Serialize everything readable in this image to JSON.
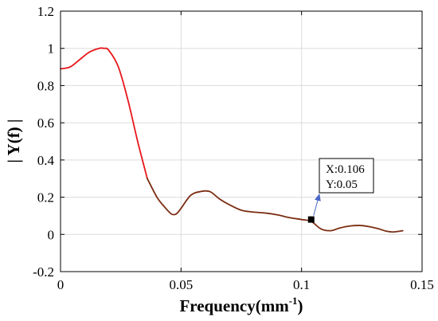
{
  "chart_data": {
    "type": "line",
    "title": "",
    "xlabel": "Frequency(mm",
    "xlabel_sup": "-1",
    "xlabel_close": ")",
    "ylabel": "| Y(f) |",
    "xlim": [
      0,
      0.15
    ],
    "ylim": [
      -0.2,
      1.2
    ],
    "xticks": [
      0,
      0.05,
      0.1,
      0.15
    ],
    "xtick_labels": [
      "0",
      "0.05",
      "0.1",
      "0.15"
    ],
    "yticks": [
      -0.2,
      0,
      0.2,
      0.4,
      0.6,
      0.8,
      1,
      1.2
    ],
    "ytick_labels": [
      "-0.2",
      "0",
      "0.2",
      "0.4",
      "0.6",
      "0.8",
      "1",
      "1.2"
    ],
    "grid": true,
    "legend": "none",
    "series": [
      {
        "color_segments": [
          {
            "until_x": 0.033,
            "color": "#e8161b"
          },
          {
            "until_x": 0.142,
            "color": "#7b2d12"
          }
        ],
        "x": [
          0,
          0.004,
          0.008,
          0.012,
          0.016,
          0.018,
          0.02,
          0.024,
          0.028,
          0.032,
          0.036,
          0.04,
          0.043,
          0.046,
          0.048,
          0.05,
          0.054,
          0.058,
          0.062,
          0.066,
          0.07,
          0.075,
          0.08,
          0.085,
          0.09,
          0.095,
          0.1,
          0.104,
          0.108,
          0.112,
          0.116,
          0.12,
          0.124,
          0.128,
          0.132,
          0.135,
          0.138,
          0.142
        ],
        "y": [
          0.89,
          0.9,
          0.94,
          0.98,
          1.0,
          1.0,
          0.99,
          0.9,
          0.72,
          0.5,
          0.3,
          0.2,
          0.15,
          0.11,
          0.11,
          0.14,
          0.21,
          0.23,
          0.23,
          0.19,
          0.16,
          0.13,
          0.12,
          0.115,
          0.105,
          0.09,
          0.08,
          0.07,
          0.03,
          0.02,
          0.035,
          0.045,
          0.048,
          0.042,
          0.03,
          0.018,
          0.013,
          0.02
        ]
      }
    ],
    "datatip": {
      "x": 0.104,
      "y": 0.08,
      "label_x": "X:0.106",
      "label_y": "Y:0.05",
      "marker_color": "#000000",
      "arrow_color": "#4a66c7"
    }
  }
}
